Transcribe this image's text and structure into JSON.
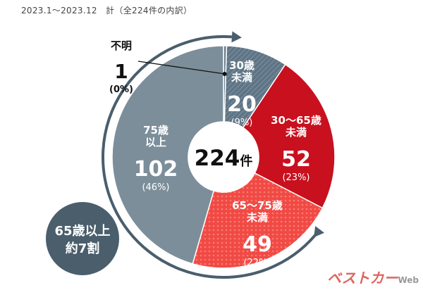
{
  "header": {
    "period_note": "2023.1～2023.12　計（全224件の内訳）"
  },
  "chart_data": {
    "type": "pie",
    "variant": "donut",
    "total": {
      "value": "224",
      "unit": "件"
    },
    "categories": [
      "不明",
      "30歳未満",
      "30〜65歳未満",
      "65〜75歳未満",
      "75歳以上"
    ],
    "values": [
      1,
      20,
      52,
      49,
      102
    ],
    "slices": [
      {
        "name_lines": [
          "不明"
        ],
        "value": "1",
        "pct": "(0%)",
        "color": "#6b7f8c"
      },
      {
        "name_lines": [
          "30歳",
          "未満"
        ],
        "value": "20",
        "pct": "(9%)",
        "color": "#5f7585",
        "pattern": "hatch"
      },
      {
        "name_lines": [
          "30〜65歳",
          "未満"
        ],
        "value": "52",
        "pct": "(23%)",
        "color": "#c8101e"
      },
      {
        "name_lines": [
          "65〜75歳",
          "未満"
        ],
        "value": "49",
        "pct": "(22%)",
        "color": "#f04a45",
        "pattern": "dots"
      },
      {
        "name_lines": [
          "75歳",
          "以上"
        ],
        "value": "102",
        "pct": "(46%)",
        "color": "#7c8e9a"
      }
    ],
    "callout": {
      "lines": [
        "65歳以上",
        "約7割"
      ],
      "color": "#4a5e6c"
    }
  },
  "watermark": {
    "brand": "ベストカー",
    "suffix": "Web"
  }
}
